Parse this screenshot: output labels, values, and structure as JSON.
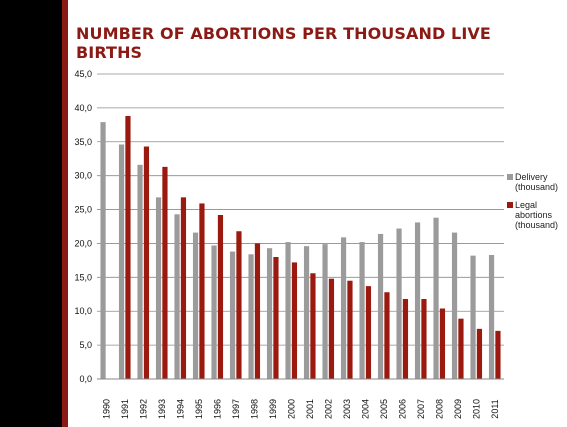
{
  "title": "NUMBER OF ABORTIONS PER THOUSAND LIVE BIRTHS",
  "chart_data": {
    "type": "bar",
    "title": "NUMBER OF ABORTIONS PER THOUSAND LIVE BIRTHS",
    "categories": [
      "1990",
      "1991",
      "1992",
      "1993",
      "1994",
      "1995",
      "1996",
      "1997",
      "1998",
      "1999",
      "2000",
      "2001",
      "2002",
      "2003",
      "2004",
      "2005",
      "2006",
      "2007",
      "2008",
      "2009",
      "2010",
      "2011"
    ],
    "series": [
      {
        "name": "Delivery (thousand)",
        "color": "#9b9b9b",
        "values": [
          37.9,
          34.6,
          31.6,
          26.8,
          24.3,
          21.6,
          19.7,
          18.8,
          18.4,
          19.3,
          20.2,
          19.6,
          19.9,
          20.9,
          20.2,
          21.4,
          22.2,
          23.1,
          23.8,
          21.6,
          18.2,
          18.3
        ]
      },
      {
        "name": "Legal abortions (thousand)",
        "color": "#9a1a10",
        "values": [
          null,
          38.8,
          34.3,
          31.3,
          26.8,
          25.9,
          24.2,
          21.8,
          20.0,
          18.0,
          17.2,
          15.6,
          14.8,
          14.5,
          13.7,
          12.8,
          11.8,
          11.8,
          10.4,
          8.9,
          7.4,
          7.1
        ]
      }
    ],
    "ylim": [
      0,
      45
    ],
    "yticks": [
      "0,0",
      "5,0",
      "10,0",
      "15,0",
      "20,0",
      "25,0",
      "30,0",
      "35,0",
      "40,0",
      "45,0"
    ],
    "grid": true,
    "legend_position": "right"
  }
}
